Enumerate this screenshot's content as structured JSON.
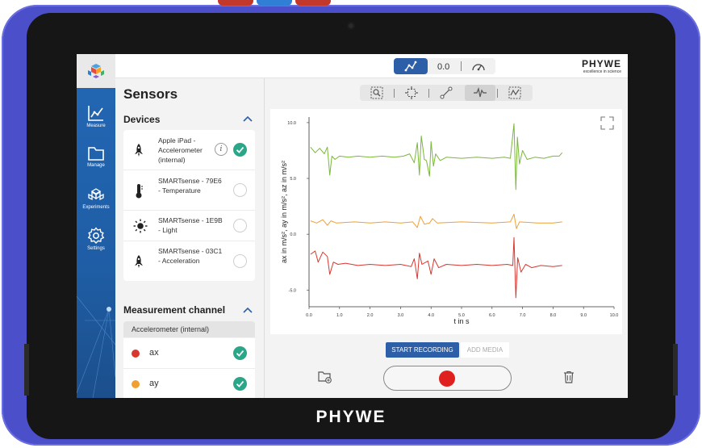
{
  "device": {
    "brand": "PHYWE"
  },
  "topbar": {
    "mode_value": "0.0",
    "logo_text": "PHYWE",
    "logo_tagline": "excellence in science"
  },
  "nav": {
    "items": [
      {
        "label": "Measure",
        "icon": "graph-icon"
      },
      {
        "label": "Manage",
        "icon": "folder-icon"
      },
      {
        "label": "Experiments",
        "icon": "experiments-icon"
      },
      {
        "label": "Settings",
        "icon": "gear-icon"
      }
    ]
  },
  "sensors": {
    "title": "Sensors",
    "devices_title": "Devices",
    "devices": [
      {
        "name": "Apple iPad - Accelerometer (internal)",
        "icon": "rocket-icon",
        "selected": true,
        "has_info": true
      },
      {
        "name": "SMARTsense - 79E6 - Temperature",
        "icon": "thermometer-icon",
        "selected": false,
        "has_info": false
      },
      {
        "name": "SMARTsense - 1E9B - Light",
        "icon": "sun-icon",
        "selected": false,
        "has_info": false
      },
      {
        "name": "SMARTsense - 03C1 - Acceleration",
        "icon": "rocket-icon",
        "selected": false,
        "has_info": false
      }
    ],
    "channel_title": "Measurement channel",
    "channel_group": "Accelerometer (internal)",
    "channels": [
      {
        "name": "ax",
        "color": "#d8372f",
        "selected": true
      },
      {
        "name": "ay",
        "color": "#f0a030",
        "selected": true
      }
    ]
  },
  "chart_data": {
    "type": "line",
    "ylabel": "ax in m/s², ay in m/s², az in m/s²",
    "xlabel": "t in s",
    "xlim": [
      0,
      10
    ],
    "ylim": [
      -6.5,
      10.5
    ],
    "x_ticks": [
      "0.0",
      "1.0",
      "2.0",
      "3.0",
      "4.0",
      "5.0",
      "6.0",
      "7.0",
      "8.0",
      "9.0",
      "10.0"
    ],
    "y_ticks": [
      "10.0",
      "5.0",
      "0.0",
      "-5.0"
    ],
    "grid": false,
    "series": [
      {
        "color": "#7ab83a",
        "values": [
          [
            0.05,
            7.8
          ],
          [
            0.2,
            7.3
          ],
          [
            0.35,
            7.7
          ],
          [
            0.5,
            7.2
          ],
          [
            0.6,
            7.8
          ],
          [
            0.68,
            5.3
          ],
          [
            0.75,
            7.0
          ],
          [
            0.85,
            6.7
          ],
          [
            1.0,
            7.0
          ],
          [
            1.3,
            6.9
          ],
          [
            1.6,
            7.0
          ],
          [
            2.0,
            6.9
          ],
          [
            2.4,
            7.0
          ],
          [
            2.8,
            6.9
          ],
          [
            3.1,
            7.0
          ],
          [
            3.3,
            7.2
          ],
          [
            3.45,
            6.4
          ],
          [
            3.55,
            8.2
          ],
          [
            3.62,
            5.3
          ],
          [
            3.68,
            8.8
          ],
          [
            3.78,
            6.7
          ],
          [
            3.85,
            6.6
          ],
          [
            3.95,
            5.2
          ],
          [
            4.0,
            8.3
          ],
          [
            4.08,
            6.1
          ],
          [
            4.15,
            7.2
          ],
          [
            4.3,
            6.6
          ],
          [
            4.5,
            6.9
          ],
          [
            5.0,
            6.8
          ],
          [
            5.5,
            6.9
          ],
          [
            6.0,
            6.8
          ],
          [
            6.4,
            6.9
          ],
          [
            6.6,
            6.8
          ],
          [
            6.72,
            9.9
          ],
          [
            6.78,
            4.0
          ],
          [
            6.83,
            8.7
          ],
          [
            6.9,
            6.3
          ],
          [
            7.0,
            7.5
          ],
          [
            7.15,
            6.7
          ],
          [
            7.4,
            6.9
          ],
          [
            7.7,
            6.8
          ],
          [
            8.0,
            7.0
          ],
          [
            8.2,
            7.0
          ],
          [
            8.3,
            7.3
          ]
        ]
      },
      {
        "color": "#f0a030",
        "values": [
          [
            0.05,
            1.2
          ],
          [
            0.25,
            1.0
          ],
          [
            0.45,
            1.3
          ],
          [
            0.6,
            0.8
          ],
          [
            0.72,
            1.2
          ],
          [
            0.9,
            1.0
          ],
          [
            1.5,
            1.1
          ],
          [
            2.0,
            1.0
          ],
          [
            2.5,
            1.1
          ],
          [
            3.0,
            1.0
          ],
          [
            3.4,
            1.1
          ],
          [
            3.55,
            0.6
          ],
          [
            3.65,
            1.6
          ],
          [
            3.78,
            0.9
          ],
          [
            3.95,
            1.0
          ],
          [
            4.05,
            1.4
          ],
          [
            4.2,
            1.0
          ],
          [
            5.0,
            1.1
          ],
          [
            6.0,
            1.0
          ],
          [
            6.6,
            1.1
          ],
          [
            6.72,
            1.8
          ],
          [
            6.8,
            0.5
          ],
          [
            6.9,
            1.1
          ],
          [
            7.5,
            1.0
          ],
          [
            8.0,
            1.0
          ],
          [
            8.3,
            1.1
          ]
        ]
      },
      {
        "color": "#d8372f",
        "values": [
          [
            0.05,
            -1.8
          ],
          [
            0.2,
            -1.5
          ],
          [
            0.3,
            -2.5
          ],
          [
            0.45,
            -1.6
          ],
          [
            0.6,
            -2.0
          ],
          [
            0.68,
            -3.6
          ],
          [
            0.8,
            -2.5
          ],
          [
            0.95,
            -2.7
          ],
          [
            1.2,
            -2.6
          ],
          [
            1.6,
            -2.8
          ],
          [
            2.0,
            -2.7
          ],
          [
            2.5,
            -2.8
          ],
          [
            3.0,
            -2.7
          ],
          [
            3.35,
            -2.9
          ],
          [
            3.45,
            -2.2
          ],
          [
            3.55,
            -4.0
          ],
          [
            3.62,
            -1.7
          ],
          [
            3.7,
            -2.7
          ],
          [
            3.9,
            -2.4
          ],
          [
            4.0,
            -3.6
          ],
          [
            4.1,
            -2.2
          ],
          [
            4.25,
            -3.0
          ],
          [
            4.5,
            -2.7
          ],
          [
            5.0,
            -2.8
          ],
          [
            5.5,
            -2.7
          ],
          [
            6.0,
            -2.8
          ],
          [
            6.5,
            -2.7
          ],
          [
            6.68,
            -2.8
          ],
          [
            6.72,
            -0.3
          ],
          [
            6.78,
            -5.7
          ],
          [
            6.84,
            -2.1
          ],
          [
            6.95,
            -3.4
          ],
          [
            7.1,
            -2.7
          ],
          [
            7.3,
            -3.0
          ],
          [
            7.6,
            -2.8
          ],
          [
            8.0,
            -2.9
          ],
          [
            8.3,
            -2.8
          ]
        ]
      }
    ]
  },
  "controls": {
    "start_recording": "START RECORDING",
    "add_media": "ADD MEDIA"
  }
}
